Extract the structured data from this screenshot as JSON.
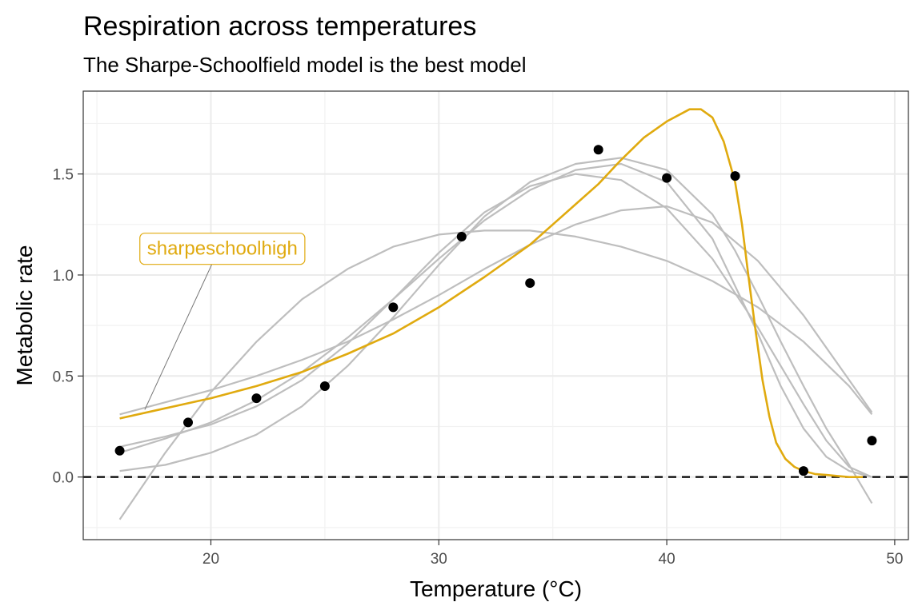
{
  "chart_data": {
    "type": "line",
    "title": "Respiration across temperatures",
    "subtitle": "The Sharpe-Schoolfield model is the best model",
    "xlabel": "Temperature (°C)",
    "ylabel": "Metabolic rate",
    "xlim": [
      14.4,
      50.6
    ],
    "ylim": [
      -0.31,
      1.91
    ],
    "x_ticks": [
      20,
      30,
      40,
      50
    ],
    "y_ticks": [
      0.0,
      0.5,
      1.0,
      1.5
    ],
    "x_tick_labels": [
      "20",
      "30",
      "40",
      "50"
    ],
    "y_tick_labels": [
      "0.0",
      "0.5",
      "1.0",
      "1.5"
    ],
    "grid": true,
    "reference_line_y": 0,
    "points": {
      "x": [
        16,
        19,
        22,
        25,
        28,
        31,
        34,
        37,
        40,
        43,
        46,
        49
      ],
      "y": [
        0.13,
        0.27,
        0.39,
        0.45,
        0.84,
        1.19,
        0.96,
        1.62,
        1.48,
        1.49,
        0.03,
        0.18
      ]
    },
    "highlight": {
      "name": "sharpeschoolhigh",
      "color": "#E0AA0F",
      "label_at": [
        17.2,
        1.1
      ],
      "x": [
        16,
        18,
        20,
        22,
        24,
        26,
        28,
        30,
        32,
        34,
        35,
        36,
        37,
        38,
        39,
        40,
        40.5,
        41,
        41.5,
        42,
        42.5,
        43,
        43.3,
        43.6,
        43.9,
        44.2,
        44.5,
        44.8,
        45.2,
        45.6,
        46,
        46.5,
        47,
        47.5,
        48,
        48.6
      ],
      "y": [
        0.29,
        0.34,
        0.39,
        0.45,
        0.52,
        0.61,
        0.71,
        0.84,
        0.99,
        1.15,
        1.25,
        1.35,
        1.45,
        1.57,
        1.68,
        1.76,
        1.79,
        1.82,
        1.82,
        1.78,
        1.66,
        1.46,
        1.25,
        0.98,
        0.72,
        0.48,
        0.3,
        0.17,
        0.09,
        0.05,
        0.03,
        0.015,
        0.01,
        0.005,
        0.0,
        0.0
      ]
    },
    "other_fits": {
      "color": "#BEBEBE",
      "curves": [
        {
          "x": [
            16,
            18,
            20,
            22,
            24,
            26,
            28,
            30,
            32,
            34,
            36,
            38,
            40,
            42,
            44,
            46,
            48,
            49
          ],
          "y": [
            -0.21,
            0.12,
            0.42,
            0.67,
            0.88,
            1.03,
            1.14,
            1.2,
            1.22,
            1.22,
            1.19,
            1.14,
            1.07,
            0.97,
            0.84,
            0.67,
            0.45,
            0.31
          ]
        },
        {
          "x": [
            16,
            18,
            20,
            22,
            24,
            26,
            28,
            30,
            32,
            34,
            36,
            38,
            40,
            42,
            44,
            46,
            48,
            49
          ],
          "y": [
            0.31,
            0.37,
            0.43,
            0.5,
            0.58,
            0.67,
            0.78,
            0.9,
            1.03,
            1.15,
            1.25,
            1.32,
            1.34,
            1.26,
            1.07,
            0.8,
            0.48,
            0.32
          ]
        },
        {
          "x": [
            16,
            18,
            20,
            22,
            24,
            26,
            28,
            30,
            32,
            34,
            36,
            38,
            40,
            42,
            44,
            45,
            46,
            47,
            48,
            49
          ],
          "y": [
            0.12,
            0.19,
            0.27,
            0.38,
            0.52,
            0.69,
            0.88,
            1.08,
            1.27,
            1.42,
            1.52,
            1.55,
            1.46,
            1.18,
            0.71,
            0.45,
            0.24,
            0.1,
            0.03,
            0.0
          ]
        },
        {
          "x": [
            16,
            18,
            20,
            22,
            24,
            26,
            28,
            30,
            32,
            34,
            36,
            38,
            40,
            42,
            44,
            46,
            47,
            48,
            49
          ],
          "y": [
            0.15,
            0.2,
            0.26,
            0.35,
            0.48,
            0.66,
            0.88,
            1.11,
            1.31,
            1.44,
            1.5,
            1.47,
            1.33,
            1.08,
            0.74,
            0.36,
            0.18,
            0.05,
            0.0
          ]
        },
        {
          "x": [
            16,
            18,
            20,
            22,
            24,
            26,
            28,
            30,
            32,
            34,
            36,
            38,
            40,
            42,
            43,
            44,
            45,
            46,
            47,
            48,
            49
          ],
          "y": [
            0.03,
            0.06,
            0.12,
            0.21,
            0.35,
            0.55,
            0.79,
            1.05,
            1.29,
            1.46,
            1.55,
            1.58,
            1.52,
            1.3,
            1.12,
            0.9,
            0.67,
            0.45,
            0.24,
            0.06,
            -0.13
          ]
        }
      ]
    }
  }
}
